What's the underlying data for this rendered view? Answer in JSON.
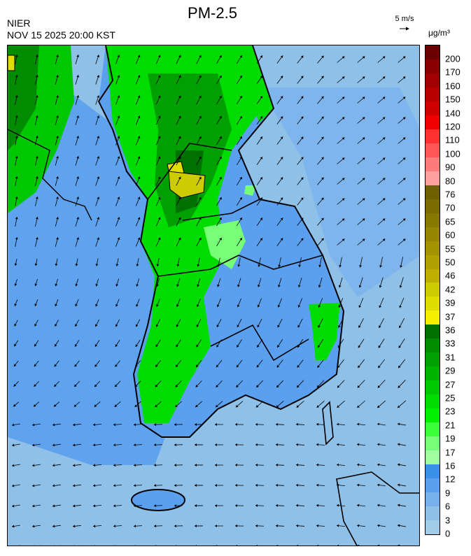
{
  "header": {
    "title": "PM-2.5",
    "agency": "NIER",
    "timestamp": "NOV 15 2025 20:00 KST",
    "wind_scale": "5 m/s",
    "unit": "μg/m³"
  },
  "colorbar": {
    "ticks": [
      "200",
      "170",
      "160",
      "150",
      "140",
      "120",
      "110",
      "100",
      "90",
      "80",
      "76",
      "70",
      "65",
      "60",
      "55",
      "50",
      "46",
      "42",
      "39",
      "37",
      "36",
      "33",
      "31",
      "29",
      "27",
      "25",
      "23",
      "21",
      "19",
      "17",
      "16",
      "12",
      "9",
      "6",
      "3",
      "0"
    ],
    "colors": [
      "#6b0000",
      "#8a0000",
      "#a00000",
      "#b80000",
      "#d00000",
      "#f00000",
      "#ff3030",
      "#ff5555",
      "#ff7b7b",
      "#ffa0a0",
      "#6e6000",
      "#7a6c00",
      "#877800",
      "#958500",
      "#a39300",
      "#b0a000",
      "#bfb000",
      "#cccc00",
      "#e0dd00",
      "#f5f000",
      "#007000",
      "#008c00",
      "#00a000",
      "#00b400",
      "#00c800",
      "#00dc00",
      "#00f000",
      "#3cff3c",
      "#78ff78",
      "#a0ffa0",
      "#3a8fe8",
      "#5aa0ee",
      "#78b0ee",
      "#8ec0e8",
      "#a0cce8"
    ]
  }
}
